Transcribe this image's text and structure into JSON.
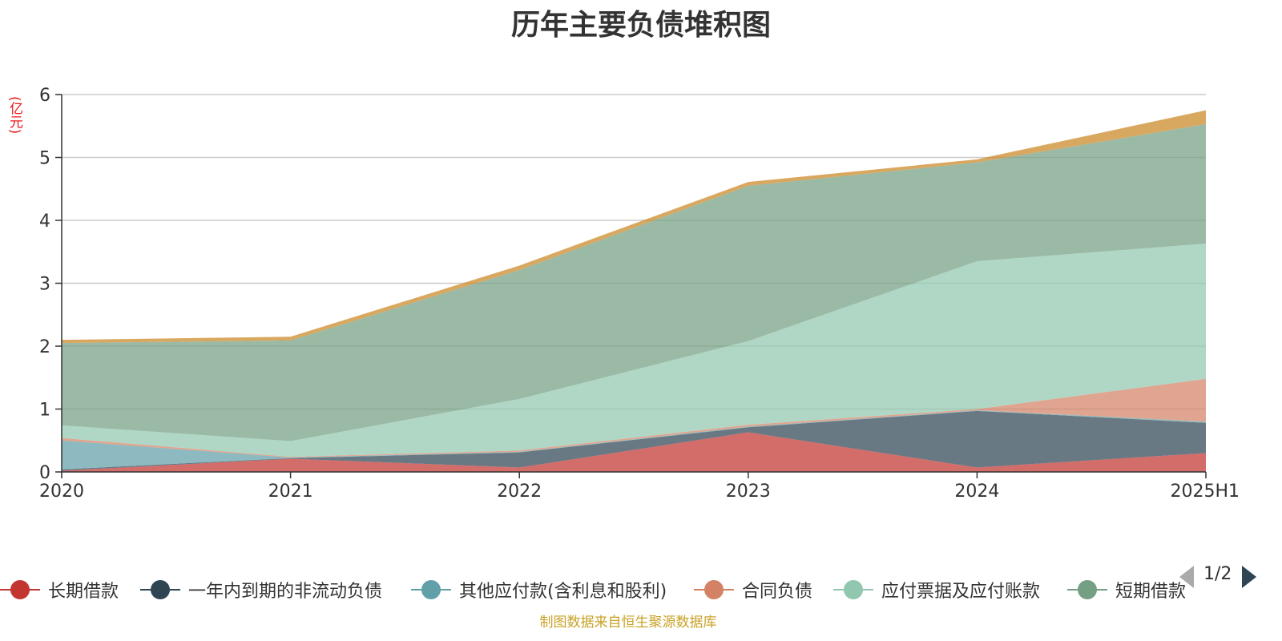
{
  "title": "历年主要负债堆积图",
  "unit_label": "(亿元)",
  "source": "制图数据来自恒生聚源数据库",
  "pager": {
    "text": "1/2"
  },
  "chart_data": {
    "type": "area",
    "stacked": true,
    "categories": [
      "2020",
      "2021",
      "2022",
      "2023",
      "2024",
      "2025H1"
    ],
    "ylim": [
      0,
      6
    ],
    "yticks": [
      "0",
      "1",
      "2",
      "3",
      "4",
      "5",
      "6"
    ],
    "grid": true,
    "legend_position": "bottom",
    "series": [
      {
        "name": "长期借款",
        "color": "#c23531",
        "values": [
          0.02,
          0.21,
          0.07,
          0.63,
          0.07,
          0.3
        ]
      },
      {
        "name": "一年内到期的非流动负债",
        "color": "#2f4554",
        "values": [
          0.02,
          0.01,
          0.24,
          0.08,
          0.9,
          0.48
        ]
      },
      {
        "name": "其他应付款(含利息和股利)",
        "color": "#61a0a8",
        "values": [
          0.46,
          0.01,
          0.01,
          0.01,
          0.01,
          0.02
        ]
      },
      {
        "name": "合同负债",
        "color": "#d48265",
        "values": [
          0.04,
          0.01,
          0.02,
          0.03,
          0.02,
          0.68
        ]
      },
      {
        "name": "应付票据及应付账款",
        "color": "#91c7ae",
        "values": [
          0.2,
          0.25,
          0.82,
          1.33,
          2.35,
          2.15
        ]
      },
      {
        "name": "短期借款",
        "color": "#749f83",
        "values": [
          1.31,
          1.6,
          2.05,
          2.47,
          1.57,
          1.9
        ]
      },
      {
        "name": "",
        "color": "#ca8622",
        "values": [
          0.05,
          0.06,
          0.07,
          0.06,
          0.05,
          0.22
        ]
      }
    ]
  }
}
